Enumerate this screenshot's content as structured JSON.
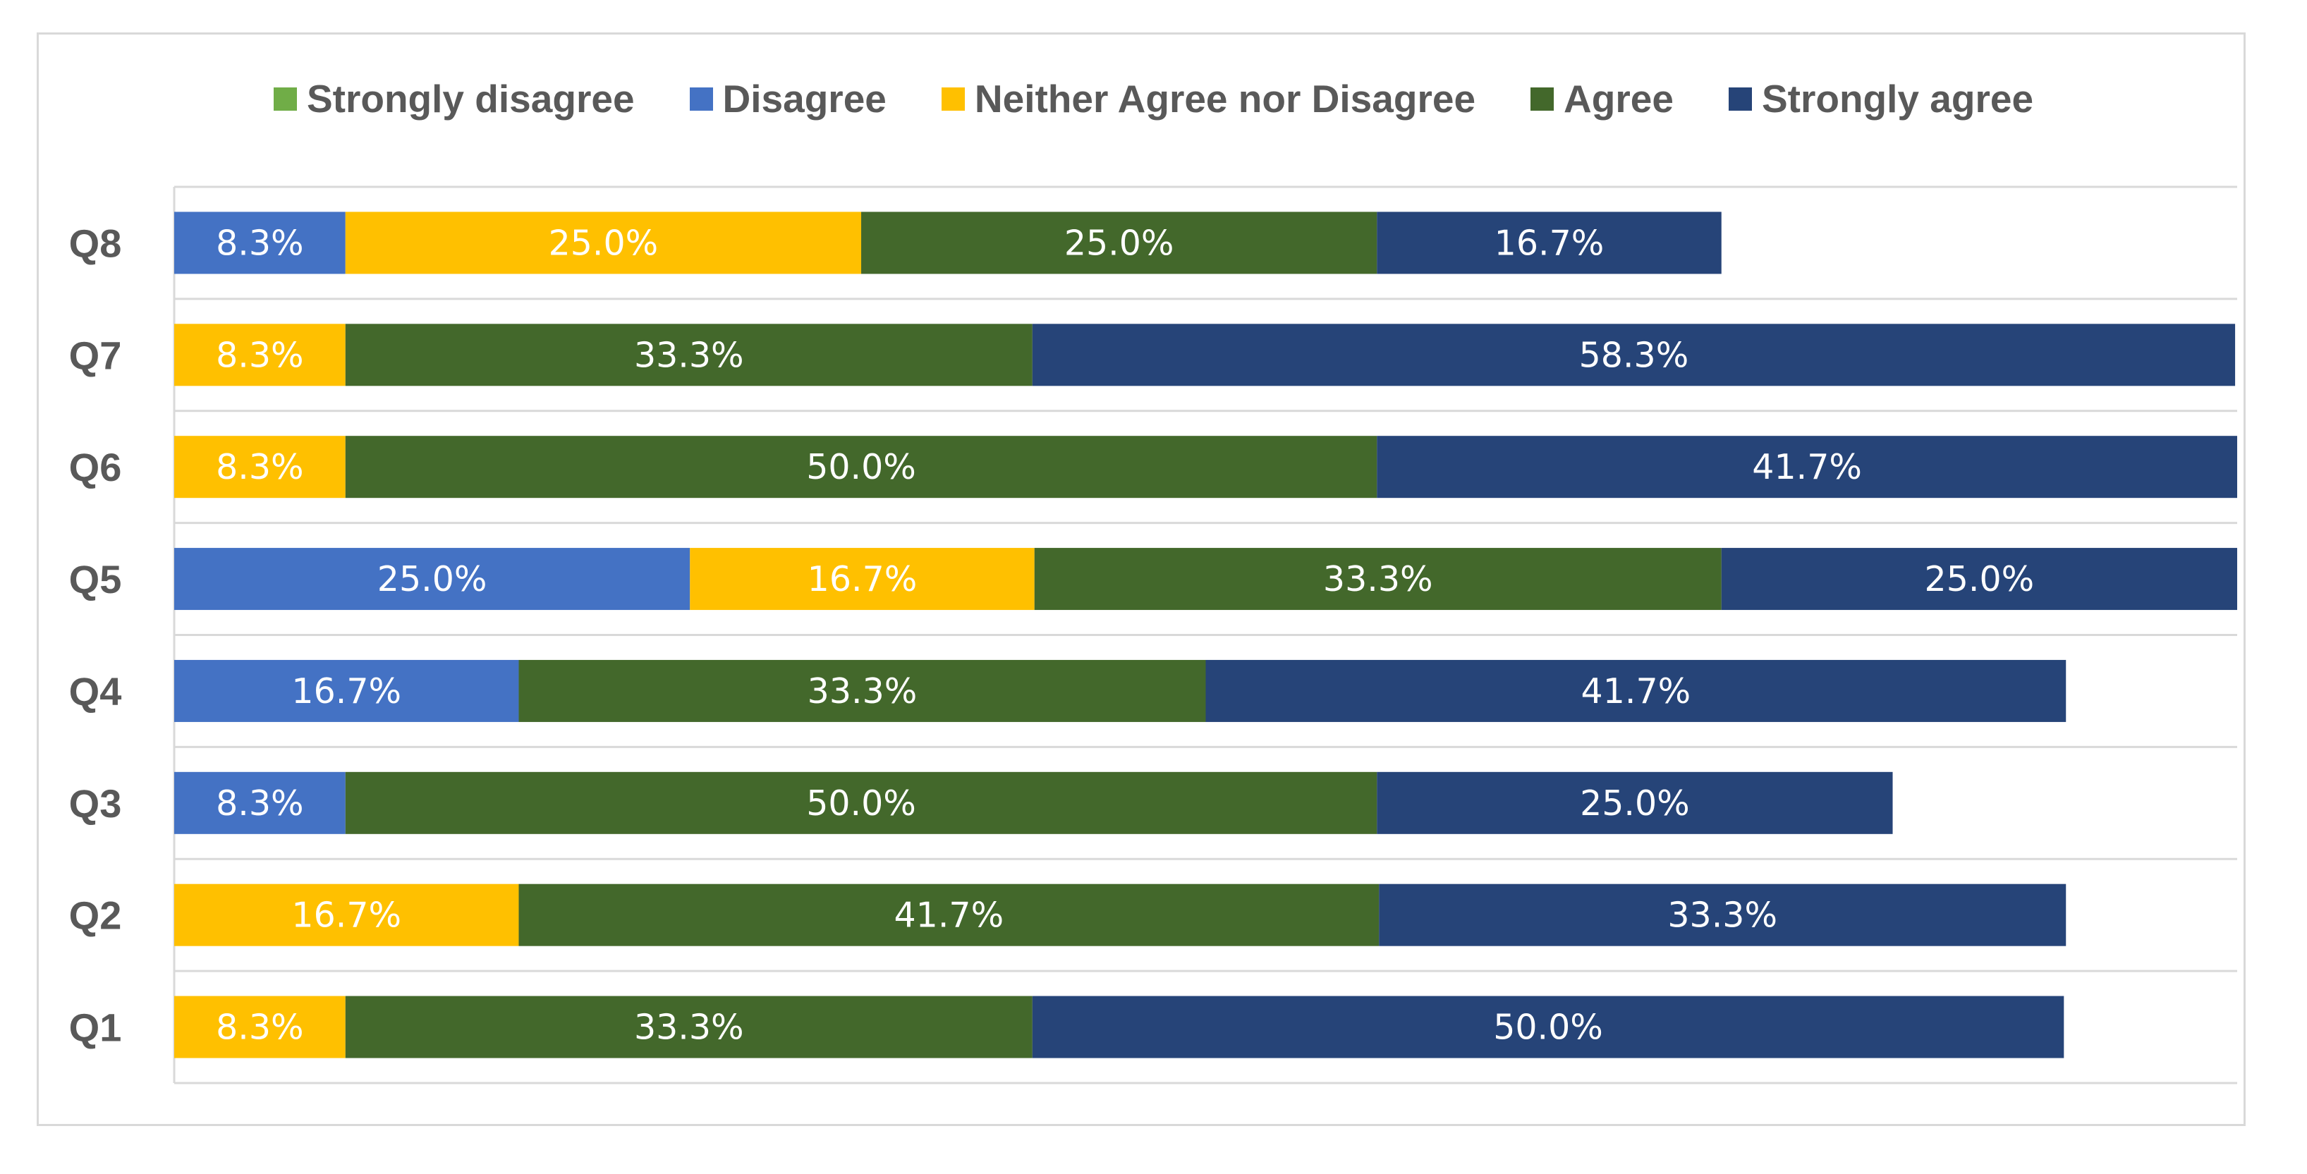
{
  "chart_data": {
    "type": "bar",
    "orientation": "horizontal",
    "stacked": true,
    "percent_stacked": true,
    "title": "",
    "xlabel": "",
    "ylabel": "",
    "xlim": [
      0,
      100
    ],
    "grid": true,
    "legend_position": "top",
    "categories": [
      "Q8",
      "Q7",
      "Q6",
      "Q5",
      "Q4",
      "Q3",
      "Q2",
      "Q1"
    ],
    "series": [
      {
        "name": "Strongly disagree",
        "color": "#70ad47",
        "values": [
          0,
          0,
          0,
          0,
          0,
          0,
          0,
          0
        ]
      },
      {
        "name": "Disagree",
        "color": "#4472c4",
        "values": [
          8.3,
          0,
          0,
          25.0,
          16.7,
          8.3,
          0,
          0
        ]
      },
      {
        "name": "Neither Agree nor Disagree",
        "color": "#ffc000",
        "values": [
          25.0,
          8.3,
          8.3,
          16.7,
          0,
          0,
          16.7,
          8.3
        ]
      },
      {
        "name": "Agree",
        "color": "#43682b",
        "values": [
          25.0,
          33.3,
          50.0,
          33.3,
          33.3,
          50.0,
          41.7,
          33.3
        ]
      },
      {
        "name": "Strongly agree",
        "color": "#264478",
        "values": [
          16.7,
          58.3,
          41.7,
          25.0,
          41.7,
          25.0,
          33.3,
          50.0
        ]
      }
    ],
    "value_label_suffix": "%"
  }
}
